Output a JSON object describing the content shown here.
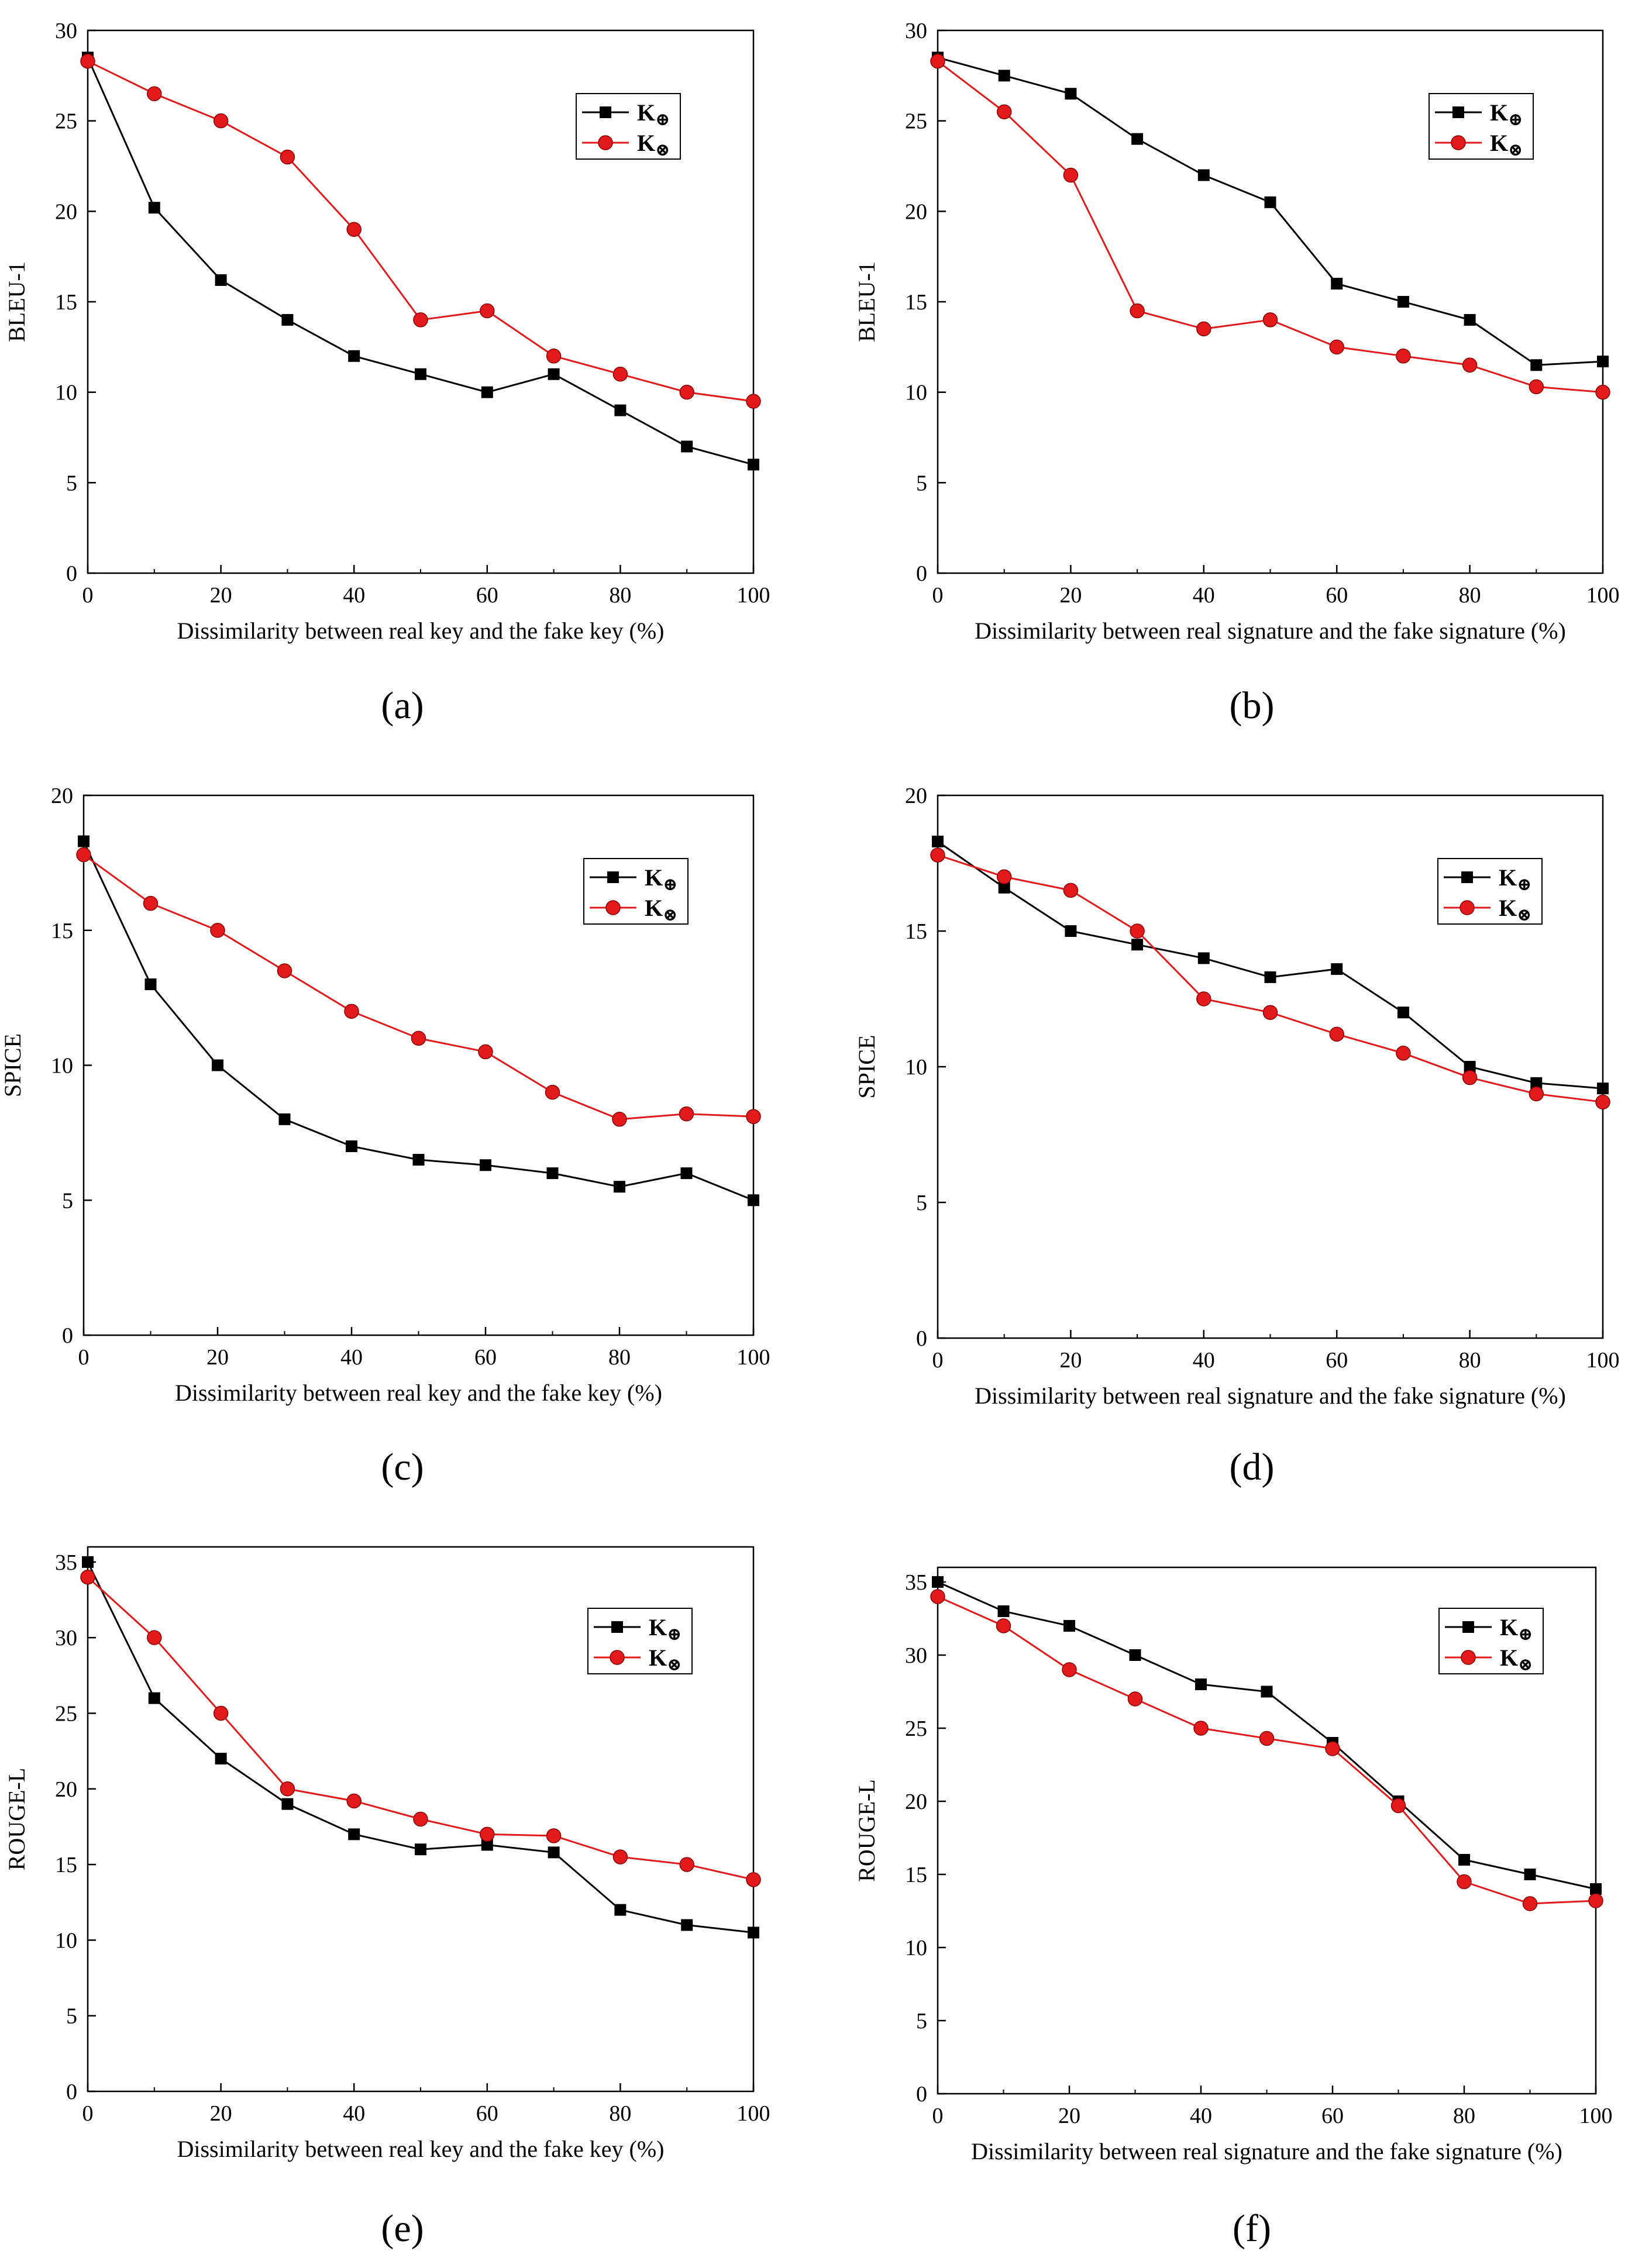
{
  "legend_symbols": {
    "oplus": "⊕",
    "otimes": "⊗"
  },
  "colors": {
    "k_oplus": "#000000",
    "k_otimes": "#e31a1c"
  },
  "chart_data": [
    {
      "id": "a",
      "panel_label": "(a)",
      "type": "line",
      "xlabel": "Dissimilarity between real key and the fake key (%)",
      "ylabel": "BLEU-1",
      "xlim": [
        0,
        100
      ],
      "ylim": [
        0,
        30
      ],
      "xticks": [
        0,
        20,
        40,
        60,
        80,
        100
      ],
      "yticks": [
        0,
        5,
        10,
        15,
        20,
        25,
        30
      ],
      "legend_position": "top-right",
      "x": [
        0,
        10,
        20,
        30,
        40,
        50,
        60,
        70,
        80,
        90,
        100
      ],
      "series": [
        {
          "name": "K",
          "symbol": "⊕",
          "marker": "square",
          "values": [
            28.5,
            20.2,
            16.2,
            14.0,
            12.0,
            11.0,
            10.0,
            11.0,
            9.0,
            7.0,
            6.0
          ]
        },
        {
          "name": "K",
          "symbol": "⊗",
          "marker": "circle",
          "values": [
            28.3,
            26.5,
            25.0,
            23.0,
            19.0,
            14.0,
            14.5,
            12.0,
            11.0,
            10.0,
            9.5
          ]
        }
      ]
    },
    {
      "id": "b",
      "panel_label": "(b)",
      "type": "line",
      "xlabel": "Dissimilarity between real signature and the fake signature (%)",
      "ylabel": "BLEU-1",
      "xlim": [
        0,
        100
      ],
      "ylim": [
        0,
        30
      ],
      "xticks": [
        0,
        20,
        40,
        60,
        80,
        100
      ],
      "yticks": [
        0,
        5,
        10,
        15,
        20,
        25,
        30
      ],
      "legend_position": "top-right",
      "x": [
        0,
        10,
        20,
        30,
        40,
        50,
        60,
        70,
        80,
        90,
        100
      ],
      "series": [
        {
          "name": "K",
          "symbol": "⊕",
          "marker": "square",
          "values": [
            28.5,
            27.5,
            26.5,
            24.0,
            22.0,
            20.5,
            16.0,
            15.0,
            14.0,
            11.5,
            11.7
          ]
        },
        {
          "name": "K",
          "symbol": "⊗",
          "marker": "circle",
          "values": [
            28.3,
            25.5,
            22.0,
            14.5,
            13.5,
            14.0,
            12.5,
            12.0,
            11.5,
            10.3,
            10.0
          ]
        }
      ]
    },
    {
      "id": "c",
      "panel_label": "(c)",
      "type": "line",
      "xlabel": "Dissimilarity between real key and the fake key (%)",
      "ylabel": "SPICE",
      "xlim": [
        0,
        100
      ],
      "ylim": [
        0,
        20
      ],
      "xticks": [
        0,
        20,
        40,
        60,
        80,
        100
      ],
      "yticks": [
        0,
        5,
        10,
        15,
        20
      ],
      "legend_position": "top-right",
      "x": [
        0,
        10,
        20,
        30,
        40,
        50,
        60,
        70,
        80,
        90,
        100
      ],
      "series": [
        {
          "name": "K",
          "symbol": "⊕",
          "marker": "square",
          "values": [
            18.3,
            13.0,
            10.0,
            8.0,
            7.0,
            6.5,
            6.3,
            6.0,
            5.5,
            6.0,
            5.0
          ]
        },
        {
          "name": "K",
          "symbol": "⊗",
          "marker": "circle",
          "values": [
            17.8,
            16.0,
            15.0,
            13.5,
            12.0,
            11.0,
            10.5,
            9.0,
            8.0,
            8.2,
            8.1
          ]
        }
      ]
    },
    {
      "id": "d",
      "panel_label": "(d)",
      "type": "line",
      "xlabel": "Dissimilarity between real signature and the fake signature (%)",
      "ylabel": "SPICE",
      "xlim": [
        0,
        100
      ],
      "ylim": [
        0,
        20
      ],
      "xticks": [
        0,
        20,
        40,
        60,
        80,
        100
      ],
      "yticks": [
        0,
        5,
        10,
        15,
        20
      ],
      "legend_position": "top-right",
      "x": [
        0,
        10,
        20,
        30,
        40,
        50,
        60,
        70,
        80,
        90,
        100
      ],
      "series": [
        {
          "name": "K",
          "symbol": "⊕",
          "marker": "square",
          "values": [
            18.3,
            16.6,
            15.0,
            14.5,
            14.0,
            13.3,
            13.6,
            12.0,
            10.0,
            9.4,
            9.2
          ]
        },
        {
          "name": "K",
          "symbol": "⊗",
          "marker": "circle",
          "values": [
            17.8,
            17.0,
            16.5,
            15.0,
            12.5,
            12.0,
            11.2,
            10.5,
            9.6,
            9.0,
            8.7
          ]
        }
      ]
    },
    {
      "id": "e",
      "panel_label": "(e)",
      "type": "line",
      "xlabel": "Dissimilarity between real key and the fake key (%)",
      "ylabel": "ROUGE-L",
      "xlim": [
        0,
        100
      ],
      "ylim": [
        0,
        36
      ],
      "xticks": [
        0,
        20,
        40,
        60,
        80,
        100
      ],
      "yticks": [
        0,
        5,
        10,
        15,
        20,
        25,
        30,
        35
      ],
      "legend_position": "top-right",
      "x": [
        0,
        10,
        20,
        30,
        40,
        50,
        60,
        70,
        80,
        90,
        100
      ],
      "series": [
        {
          "name": "K",
          "symbol": "⊕",
          "marker": "square",
          "values": [
            35.0,
            26.0,
            22.0,
            19.0,
            17.0,
            16.0,
            16.3,
            15.8,
            12.0,
            11.0,
            10.5
          ]
        },
        {
          "name": "K",
          "symbol": "⊗",
          "marker": "circle",
          "values": [
            34.0,
            30.0,
            25.0,
            20.0,
            19.2,
            18.0,
            17.0,
            16.9,
            15.5,
            15.0,
            14.0
          ]
        }
      ]
    },
    {
      "id": "f",
      "panel_label": "(f)",
      "type": "line",
      "xlabel": "Dissimilarity between real signature and the fake signature (%)",
      "ylabel": "ROUGE-L",
      "xlim": [
        0,
        100
      ],
      "ylim": [
        0,
        36
      ],
      "xticks": [
        0,
        20,
        40,
        60,
        80,
        100
      ],
      "yticks": [
        0,
        5,
        10,
        15,
        20,
        25,
        30,
        35
      ],
      "legend_position": "top-right",
      "x": [
        0,
        10,
        20,
        30,
        40,
        50,
        60,
        70,
        80,
        90,
        100
      ],
      "series": [
        {
          "name": "K",
          "symbol": "⊕",
          "marker": "square",
          "values": [
            35.0,
            33.0,
            32.0,
            30.0,
            28.0,
            27.5,
            24.0,
            20.0,
            16.0,
            15.0,
            14.0
          ]
        },
        {
          "name": "K",
          "symbol": "⊗",
          "marker": "circle",
          "values": [
            34.0,
            32.0,
            29.0,
            27.0,
            25.0,
            24.3,
            23.6,
            19.7,
            14.5,
            13.0,
            13.2
          ]
        }
      ]
    }
  ]
}
